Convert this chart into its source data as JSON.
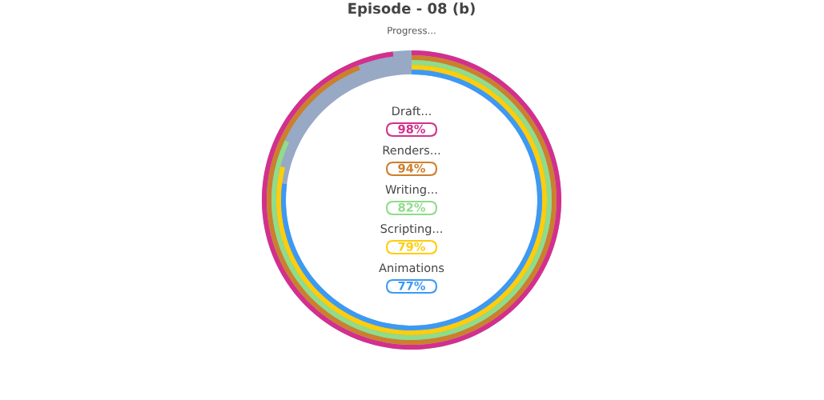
{
  "chart_data": {
    "type": "other",
    "title": "Episode - 08 (b)",
    "subtitle": "Progress...",
    "categories": [
      "Draft...",
      "Renders...",
      "Writing...",
      "Scripting...",
      "Animations"
    ],
    "values": [
      98,
      94,
      82,
      79,
      77
    ],
    "colors": [
      "#d42f8d",
      "#cd7f2c",
      "#8fdc8a",
      "#fecd0b",
      "#3c99f4"
    ],
    "value_labels": [
      "98%",
      "94%",
      "82%",
      "79%",
      "77%"
    ]
  }
}
